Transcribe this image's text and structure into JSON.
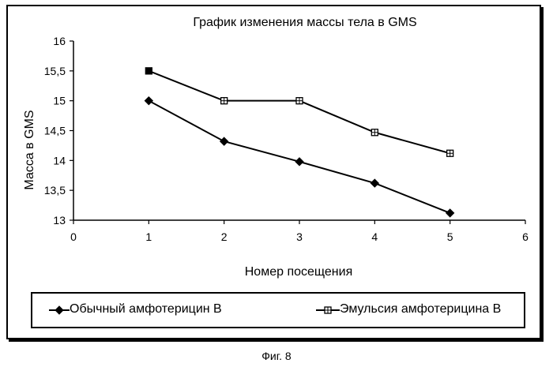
{
  "chart_data": {
    "type": "line",
    "title": "График изменения массы тела в GMS",
    "xlabel": "Номер посещения",
    "ylabel": "Масса в GMS",
    "xlim": [
      0,
      6
    ],
    "ylim": [
      13,
      16
    ],
    "x_ticks": [
      0,
      1,
      2,
      3,
      4,
      5,
      6
    ],
    "y_ticks": [
      13,
      13.5,
      14,
      14.5,
      15,
      15.5,
      16
    ],
    "y_tick_labels": [
      "13",
      "13,5",
      "14",
      "14,5",
      "15",
      "15,5",
      "16"
    ],
    "grid": false,
    "legend_position": "bottom",
    "series": [
      {
        "name": "Обычный амфотерицин В",
        "marker": "diamond",
        "x": [
          1,
          2,
          3,
          4,
          5
        ],
        "values": [
          15.0,
          14.32,
          13.98,
          13.62,
          13.12
        ]
      },
      {
        "name": "Эмульсия амфотерицина В",
        "marker": "square-hatched",
        "x": [
          1,
          2,
          3,
          4,
          5
        ],
        "values": [
          15.5,
          15.0,
          15.0,
          14.47,
          14.12
        ]
      }
    ]
  },
  "figure_caption": "Фиг. 8",
  "colors": {
    "line": "#000000",
    "background": "#ffffff"
  }
}
